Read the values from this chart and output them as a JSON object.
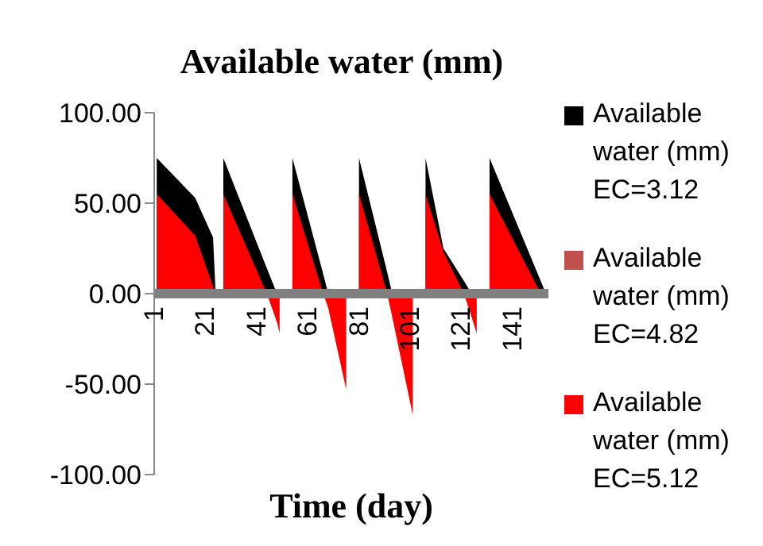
{
  "chart_data": {
    "type": "area",
    "title": "Available water (mm)",
    "xlabel": "Time (day)",
    "x": [
      2,
      2,
      17,
      24,
      25,
      28,
      28,
      45,
      49,
      50,
      50,
      55,
      55,
      67,
      69,
      76,
      76,
      81,
      81,
      92,
      94,
      102,
      102,
      107,
      107,
      114,
      122,
      125,
      127,
      127,
      132,
      132,
      152,
      154
    ],
    "series": [
      {
        "name": "Available water (mm) EC=3.12",
        "color": "#000000",
        "values": [
          0,
          75,
          53,
          31,
          0,
          0,
          75,
          14,
          0,
          0,
          0,
          0,
          75,
          11,
          0,
          0,
          0,
          0,
          75,
          12,
          0,
          0,
          0,
          0,
          75,
          25,
          7,
          0,
          0,
          0,
          0,
          75,
          7,
          0
        ]
      },
      {
        "name": "Available water (mm) EC=4.82",
        "color": "#c0504d",
        "values": [
          null,
          null,
          null,
          null,
          null,
          null,
          null,
          null,
          null,
          null,
          null,
          null,
          null,
          null,
          null,
          null,
          null,
          null,
          null,
          null,
          null,
          null,
          null,
          null,
          null,
          null,
          null,
          null,
          null,
          null,
          null,
          null,
          null,
          null
        ]
      },
      {
        "name": "Available water (mm) EC=5.12",
        "color": "#ff0000",
        "values": [
          0,
          55,
          32,
          4,
          0,
          0,
          55,
          0,
          -16,
          -22,
          0,
          0,
          55,
          0,
          -8,
          -53,
          0,
          0,
          55,
          0,
          -13,
          -67,
          0,
          0,
          55,
          23,
          0,
          -13,
          -22,
          0,
          0,
          55,
          0,
          0
        ]
      }
    ],
    "xlim": [
      1,
      155
    ],
    "xticks": [
      1,
      21,
      41,
      61,
      81,
      101,
      121,
      141
    ],
    "ylim": [
      -100,
      100
    ],
    "yticks": [
      {
        "value": -100,
        "label": "-100.00"
      },
      {
        "value": -50,
        "label": "-50.00"
      },
      {
        "value": 0,
        "label": "0.00"
      },
      {
        "value": 50,
        "label": "50.00"
      },
      {
        "value": 100,
        "label": "100.00"
      }
    ],
    "grid": false,
    "legend": "right"
  }
}
